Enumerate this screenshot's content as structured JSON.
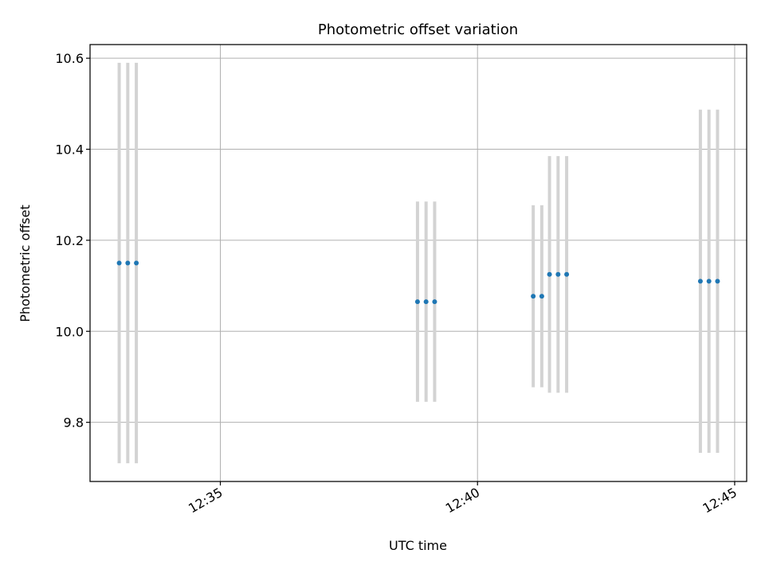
{
  "chart_data": {
    "type": "scatter",
    "title": "Photometric offset variation",
    "xlabel": "UTC time",
    "ylabel": "Photometric offset",
    "xlim": [
      "12:32:28",
      "12:45:14"
    ],
    "ylim": [
      9.67,
      10.63
    ],
    "x_ticks": [
      {
        "label": "12:35",
        "value": "12:35:00"
      },
      {
        "label": "12:40",
        "value": "12:40:00"
      },
      {
        "label": "12:45",
        "value": "12:45:00"
      }
    ],
    "y_ticks": [
      {
        "label": "9.8",
        "value": 9.8
      },
      {
        "label": "10.0",
        "value": 10.0
      },
      {
        "label": "10.2",
        "value": 10.2
      },
      {
        "label": "10.4",
        "value": 10.4
      },
      {
        "label": "10.6",
        "value": 10.6
      }
    ],
    "grid": true,
    "series": [
      {
        "marker_color": "#1f77b4",
        "errorbar_color": "#d3d3d3",
        "points": [
          {
            "x": "12:33:02",
            "y": 10.15,
            "err": 0.44
          },
          {
            "x": "12:33:12",
            "y": 10.15,
            "err": 0.44
          },
          {
            "x": "12:33:22",
            "y": 10.15,
            "err": 0.44
          },
          {
            "x": "12:38:50",
            "y": 10.065,
            "err": 0.22
          },
          {
            "x": "12:39:00",
            "y": 10.065,
            "err": 0.22
          },
          {
            "x": "12:39:10",
            "y": 10.065,
            "err": 0.22
          },
          {
            "x": "12:41:05",
            "y": 10.077,
            "err": 0.2
          },
          {
            "x": "12:41:15",
            "y": 10.077,
            "err": 0.2
          },
          {
            "x": "12:41:24",
            "y": 10.125,
            "err": 0.26
          },
          {
            "x": "12:41:34",
            "y": 10.125,
            "err": 0.26
          },
          {
            "x": "12:41:44",
            "y": 10.125,
            "err": 0.26
          },
          {
            "x": "12:44:20",
            "y": 10.11,
            "err": 0.377
          },
          {
            "x": "12:44:30",
            "y": 10.11,
            "err": 0.377
          },
          {
            "x": "12:44:40",
            "y": 10.11,
            "err": 0.377
          }
        ]
      }
    ]
  }
}
